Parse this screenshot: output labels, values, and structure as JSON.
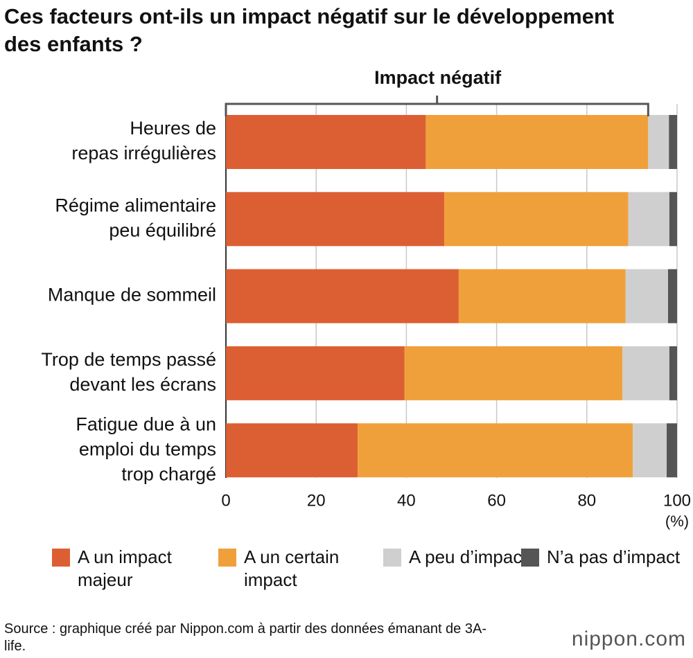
{
  "chart_data": {
    "type": "stacked-bar-horizontal",
    "title": "Ces facteurs ont-ils un impact négatif sur le développement des enfants ?",
    "annotation": "Impact négatif",
    "x_label": "(%)",
    "categories": [
      [
        "Heures de",
        "repas irrégulières"
      ],
      [
        "Régime alimentaire",
        "peu équilibré"
      ],
      [
        "Manque de sommeil"
      ],
      [
        "Trop de temps passé",
        "devant les écrans"
      ],
      [
        "Fatigue due à un",
        "emploi du temps",
        "trop chargé"
      ]
    ],
    "series": [
      {
        "name": "A un impact majeur",
        "color": "#dc5f33",
        "values": [
          44.3,
          48.4,
          51.6,
          39.6,
          29.2
        ]
      },
      {
        "name": "A un certain impact",
        "color": "#f0a03a",
        "values": [
          49.3,
          40.8,
          37.0,
          48.3,
          61.0
        ]
      },
      {
        "name": "A peu d’impact",
        "color": "#cfcfcf",
        "values": [
          4.6,
          9.1,
          9.4,
          10.4,
          7.5
        ]
      },
      {
        "name": "N’a pas d’impact",
        "color": "#555555",
        "values": [
          1.8,
          1.7,
          2.0,
          1.7,
          2.3
        ]
      }
    ],
    "xlim": [
      0,
      100
    ],
    "xticks": [
      0,
      20,
      40,
      60,
      80,
      100
    ],
    "grid": true,
    "source": "Source : graphique créé par Nippon.com à partir des données émanant de 3A-life.",
    "brand": "nippon.com"
  }
}
